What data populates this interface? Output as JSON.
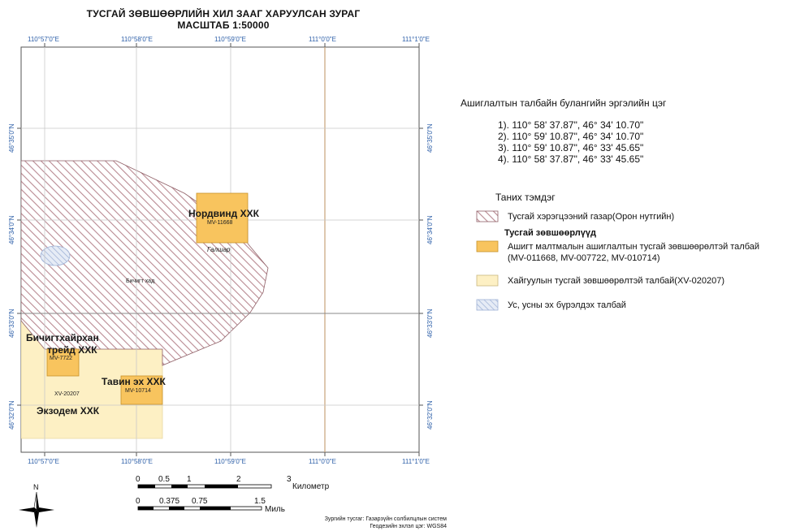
{
  "title": {
    "line1": "ТУСГАЙ ЗӨВШӨӨРЛИЙН ХИЛ ЗААГ ХАРУУЛСАН ЗУРАГ",
    "line2": "МАСШТАБ 1:50000"
  },
  "grid": {
    "lon_labels": [
      "110°57'0\"E",
      "110°58'0\"E",
      "110°59'0\"E",
      "111°0'0\"E",
      "111°1'0\"E"
    ],
    "lat_labels": [
      "46°35'0\"N",
      "46°34'0\"N",
      "46°33'0\"N",
      "46°32'0\"N"
    ]
  },
  "map_labels": {
    "nordwind_company": "Нордвинд ХХК",
    "nordwind_license": "MV-11668",
    "galshar": "Галшар",
    "bichigt_khad": "Бичигт хад",
    "bichigtkhairkhan_line1": "Бичигтхайрхан",
    "bichigtkhairkhan_line2": "трейд ХХК",
    "bichigtkhairkhan_license": "MV-7722",
    "tavin_company": "Тавин эх ХХК",
    "tavin_license": "MV-10714",
    "exploration_license": "XV-20207",
    "ekzodem_company": "Экзодем ХХК"
  },
  "coordinates": {
    "title": "Ашиглалтын талбайн булангийн эргэлийн цэг",
    "points": [
      "1). 110° 58' 37.87\",  46° 34' 10.70\"",
      "2). 110° 59' 10.87\",  46° 34' 10.70\"",
      "3). 110° 59' 10.87\",  46° 33' 45.65\"",
      "4). 110° 58' 37.87\",  46° 33' 45.65\""
    ]
  },
  "legend": {
    "title": "Таних тэмдэг",
    "special_area": "Тусгай хэрэгцээний газар(Орон нутгийн)",
    "licenses_heading": "Тусгай зөвшөөрлүүд",
    "mining_line1": "Ашигт малтмалын ашиглалтын тусгай зөвшөөрөлтэй талбай",
    "mining_line2": "(MV-011668, MV-007722, MV-010714)",
    "exploration": "Хайгуулын тусгай зөвшөөрөлтэй талбай(XV-020207)",
    "water": "Ус, усны эх бүрэлдэх талбай"
  },
  "scale": {
    "km_ticks": [
      "0",
      "0.5",
      "1",
      "2",
      "3"
    ],
    "km_unit": "Километр",
    "mile_ticks": [
      "0",
      "0.375",
      "0.75",
      "1.5"
    ],
    "mile_unit": "Миль"
  },
  "north_label": "N",
  "source": {
    "line1": "Зургийн тусгаг: Газарзүйн солбилцлын систем",
    "line2": "Геодезийн эхлэл цэг: WGS84"
  },
  "colors": {
    "hatch": "#b98a92",
    "mining": "#f8c45e",
    "exploration": "#fdf0c4",
    "water": "#c8d6ec",
    "meridian": "#c8a37a",
    "grid": "#bfbfbf",
    "tick_text": "#2d5fa8"
  }
}
